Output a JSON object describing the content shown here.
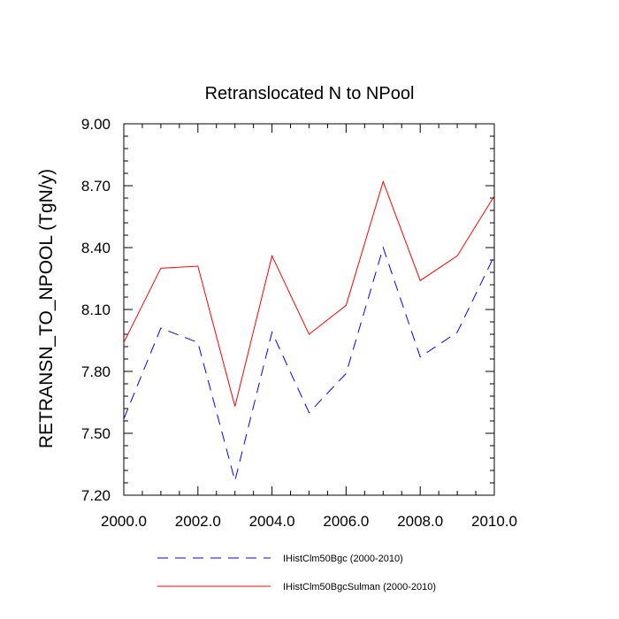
{
  "chart_data": {
    "type": "line",
    "title": "Retranslocated N to NPool",
    "ylabel": "RETRANSN_TO_NPOOL  (TgN/y)",
    "xlabel": "",
    "xlim": [
      2000,
      2010
    ],
    "ylim": [
      7.2,
      9.0
    ],
    "x_ticks": [
      2000,
      2002,
      2004,
      2006,
      2008,
      2010
    ],
    "x_tick_labels": [
      "2000.0",
      "2002.0",
      "2004.0",
      "2006.0",
      "2008.0",
      "2010.0"
    ],
    "y_ticks": [
      7.2,
      7.5,
      7.8,
      8.1,
      8.4,
      8.7,
      9.0
    ],
    "y_tick_labels": [
      "7.20",
      "7.50",
      "7.80",
      "8.10",
      "8.40",
      "8.70",
      "9.00"
    ],
    "grid": false,
    "legend_position": "bottom",
    "x": [
      2000,
      2001,
      2002,
      2003,
      2004,
      2005,
      2006,
      2007,
      2008,
      2009,
      2010
    ],
    "series": [
      {
        "name": "IHistClm50Bgc (2000-2010)",
        "color": "#0000ff",
        "style": "dashed",
        "values": [
          7.57,
          8.01,
          7.94,
          7.27,
          7.99,
          7.6,
          7.79,
          8.4,
          7.87,
          7.99,
          8.36
        ]
      },
      {
        "name": "IHistClm50BgcSulman (2000-2010)",
        "color": "#ff0000",
        "style": "solid",
        "values": [
          7.94,
          8.3,
          8.31,
          7.63,
          8.36,
          7.98,
          8.12,
          8.72,
          8.24,
          8.36,
          8.65
        ]
      }
    ]
  }
}
